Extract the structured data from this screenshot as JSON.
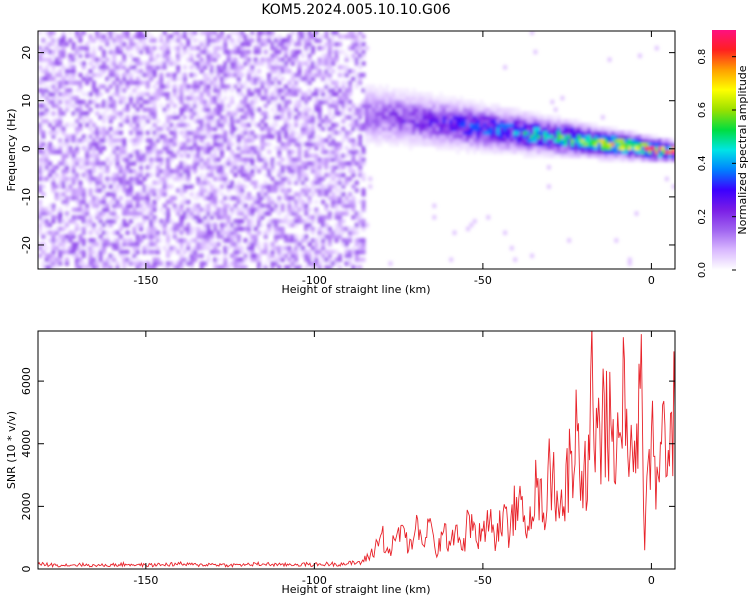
{
  "title": "KOM5.2024.005.10.10.G06",
  "colors": {
    "snr_line": "#e8232a",
    "colormap": [
      "#ffffff",
      "#d9b8ff",
      "#a064f0",
      "#7a1ee6",
      "#3b00ff",
      "#0080ff",
      "#00e5e5",
      "#00dd40",
      "#9ae000",
      "#ffff00",
      "#ffa000",
      "#ff2020",
      "#ff1080"
    ]
  },
  "chart_data": [
    {
      "type": "heatmap",
      "title": "",
      "xlabel": "Height of straight line (km)",
      "ylabel": "Frequency (Hz)",
      "xlim": [
        -182,
        7
      ],
      "ylim": [
        -25,
        24.5
      ],
      "x_ticks": [
        -150,
        -100,
        -50,
        0
      ],
      "x_tick_labels": [
        "-150",
        "-100",
        "-50",
        "0"
      ],
      "y_ticks": [
        -20,
        -10,
        0,
        10,
        20
      ],
      "y_tick_labels": [
        "-20",
        "-10",
        "0",
        "10",
        "20"
      ],
      "colorbar": {
        "label": "Normalized spectral amplitude",
        "range": [
          0,
          0.9
        ],
        "ticks": [
          0.0,
          0.2,
          0.4,
          0.6,
          0.8
        ],
        "tick_labels": [
          "0.0",
          "0.2",
          "0.4",
          "0.6",
          "0.8"
        ]
      },
      "features": [
        {
          "name": "noise",
          "x_range": [
            -182,
            -85
          ],
          "freq_range": [
            -25,
            24.5
          ],
          "amplitude": [
            0.02,
            0.18
          ]
        },
        {
          "name": "signal_band",
          "x_range": [
            -85,
            7
          ],
          "freq_center_start": 7,
          "freq_center_end": -1,
          "halfwidth_start": 4.5,
          "halfwidth_end": 1.5,
          "amplitude_start": 0.18,
          "amplitude_end": 0.85
        }
      ],
      "grid": false
    },
    {
      "type": "line",
      "title": "",
      "xlabel": "Height of straight line (km)",
      "ylabel": "SNR (10 * v/v)",
      "xlim": [
        -182,
        7
      ],
      "ylim": [
        0,
        7600
      ],
      "x_ticks": [
        -150,
        -100,
        -50,
        0
      ],
      "x_tick_labels": [
        "-150",
        "-100",
        "-50",
        "0"
      ],
      "y_ticks": [
        0,
        2000,
        4000,
        6000
      ],
      "y_tick_labels": [
        "0",
        "2000",
        "4000",
        "6000"
      ],
      "grid": false,
      "series": [
        {
          "x": [
            -182,
            -175,
            -170,
            -165,
            -160,
            -155,
            -150,
            -145,
            -140,
            -135,
            -130,
            -125,
            -120,
            -115,
            -110,
            -105,
            -100,
            -95,
            -90,
            -86,
            -84,
            -82,
            -80,
            -78,
            -76,
            -74,
            -72,
            -70,
            -68,
            -66,
            -64,
            -62,
            -60,
            -58,
            -56,
            -54,
            -52,
            -50,
            -48,
            -46,
            -44,
            -42,
            -40,
            -38,
            -36,
            -34,
            -32,
            -30,
            -28,
            -26,
            -24,
            -22,
            -20,
            -19,
            -18,
            -17,
            -16,
            -15,
            -14,
            -13,
            -12,
            -11,
            -10,
            -9,
            -8,
            -7,
            -6,
            -5,
            -4,
            -3,
            -2,
            -1,
            0,
            1,
            2,
            3,
            4,
            5,
            6,
            7
          ],
          "y": [
            150,
            120,
            140,
            110,
            130,
            150,
            120,
            140,
            160,
            130,
            150,
            120,
            140,
            160,
            130,
            150,
            140,
            160,
            170,
            220,
            380,
            650,
            1150,
            500,
            900,
            1400,
            600,
            1300,
            800,
            1500,
            500,
            1100,
            900,
            1400,
            600,
            1700,
            900,
            1200,
            1500,
            900,
            1800,
            1100,
            2300,
            1500,
            2000,
            2600,
            1800,
            3200,
            2500,
            2000,
            3700,
            4400,
            3300,
            2200,
            6300,
            3800,
            4500,
            2700,
            5600,
            3900,
            4600,
            2800,
            5000,
            4200,
            6700,
            3600,
            4600,
            4100,
            3200,
            7500,
            600,
            3400,
            4400,
            3600,
            3000,
            4000,
            4600,
            3800,
            5000,
            5100
          ]
        }
      ]
    }
  ]
}
